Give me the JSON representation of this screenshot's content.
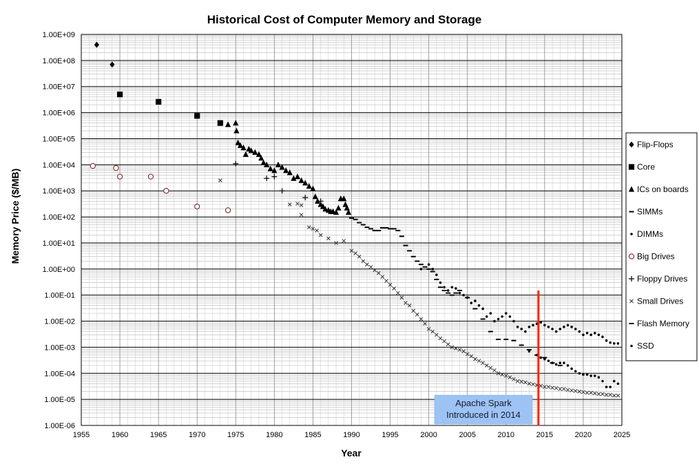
{
  "chart_data": {
    "type": "scatter",
    "title": "Historical Cost of Computer Memory and Storage",
    "xlabel": "Year",
    "ylabel": "Memory Price ($/MB)",
    "xlim": [
      1955,
      2025
    ],
    "ylim": [
      1e-06,
      1000000000.0
    ],
    "yscale": "log",
    "x_ticks": [
      "1955",
      "1960",
      "1965",
      "1970",
      "1975",
      "1980",
      "1985",
      "1990",
      "1995",
      "2000",
      "2005",
      "2010",
      "2015",
      "2020",
      "2025"
    ],
    "y_ticks": [
      "1.00E-06",
      "1.00E-05",
      "1.00E-04",
      "1.00E-03",
      "1.00E-02",
      "1.00E-01",
      "1.00E+00",
      "1.00E+01",
      "1.00E+02",
      "1.00E+03",
      "1.00E+04",
      "1.00E+05",
      "1.00E+06",
      "1.00E+07",
      "1.00E+08",
      "1.00E+09"
    ],
    "grid": true,
    "legend_position": "right",
    "series": [
      {
        "name": "Flip-Flops",
        "marker": "diamond",
        "x": [
          1957,
          1959
        ],
        "y": [
          400000000,
          70000000
        ]
      },
      {
        "name": "Core",
        "marker": "square",
        "x": [
          1960,
          1965,
          1970,
          1973
        ],
        "y": [
          5000000,
          2600000,
          750000,
          400000
        ]
      },
      {
        "name": "ICs on boards",
        "marker": "triangle",
        "x": [
          1974,
          1975,
          1975.1,
          1975.3,
          1975.6,
          1976,
          1976.3,
          1976.7,
          1977,
          1977.5,
          1978,
          1978.3,
          1978.6,
          1979,
          1979.5,
          1980,
          1980.5,
          1981,
          1981.5,
          1982,
          1982.5,
          1983,
          1983.5,
          1984,
          1984.5,
          1985,
          1985.3,
          1985.6,
          1986,
          1986.3,
          1986.6,
          1987,
          1987.3,
          1987.6,
          1988,
          1988.3,
          1988.6,
          1989,
          1989.2,
          1989.4,
          1989.6
        ],
        "y": [
          350000,
          400000,
          200000,
          70000,
          55000,
          45000,
          25000,
          40000,
          35000,
          30000,
          25000,
          18000,
          12000,
          10000,
          7000,
          6000,
          10000,
          8000,
          6000,
          5000,
          3000,
          3500,
          2500,
          2000,
          1500,
          1200,
          600,
          400,
          300,
          250,
          200,
          180,
          160,
          160,
          150,
          220,
          500,
          500,
          300,
          220,
          150
        ]
      },
      {
        "name": "SIMMs",
        "marker": "dash",
        "x": [
          1990,
          1990.5,
          1991,
          1991.5,
          1992,
          1992.5,
          1993,
          1993.5,
          1994,
          1994.5,
          1995,
          1995.5,
          1996,
          1996.5,
          1997,
          1997.5,
          1998,
          1998.5,
          1999,
          1999.5,
          2000,
          2000.5,
          2001,
          2001.5,
          2002,
          2002.5,
          2003,
          2003.5,
          2004
        ],
        "y": [
          90,
          80,
          60,
          50,
          40,
          35,
          30,
          30,
          38,
          38,
          35,
          35,
          30,
          18,
          8,
          5,
          3,
          2,
          1.5,
          1.2,
          1.0,
          0.8,
          0.4,
          0.2,
          0.15,
          0.12,
          0.1,
          0.12,
          0.15
        ]
      },
      {
        "name": "DIMMs",
        "marker": "dot",
        "x": [
          1999,
          2000,
          2000.5,
          2001,
          2001.5,
          2002,
          2002.5,
          2003,
          2003.5,
          2004,
          2004.5,
          2005,
          2005.5,
          2006,
          2006.5,
          2007,
          2007.5,
          2008,
          2008.5,
          2009,
          2009.5,
          2010,
          2010.5,
          2011,
          2011.5,
          2012,
          2012.5,
          2013,
          2013.5,
          2014,
          2014.5,
          2015,
          2015.5,
          2016,
          2016.5,
          2017,
          2017.5,
          2018,
          2018.5,
          2019,
          2019.5,
          2020,
          2020.5,
          2021,
          2021.5,
          2022,
          2022.5,
          2023,
          2023.5,
          2024,
          2024.5
        ],
        "y": [
          1.0,
          1.5,
          1.0,
          0.6,
          0.3,
          0.2,
          0.15,
          0.2,
          0.18,
          0.12,
          0.1,
          0.08,
          0.05,
          0.06,
          0.04,
          0.03,
          0.015,
          0.02,
          0.01,
          0.012,
          0.015,
          0.02,
          0.015,
          0.01,
          0.006,
          0.005,
          0.004,
          0.006,
          0.007,
          0.008,
          0.009,
          0.007,
          0.006,
          0.005,
          0.004,
          0.005,
          0.006,
          0.007,
          0.006,
          0.005,
          0.004,
          0.003,
          0.0035,
          0.003,
          0.0035,
          0.003,
          0.0025,
          0.0018,
          0.0015,
          0.0014,
          0.0014
        ]
      },
      {
        "name": "Big Drives",
        "marker": "circle-open",
        "x": [
          1956.5,
          1959.5,
          1960,
          1964,
          1966,
          1970,
          1974
        ],
        "y": [
          9000,
          7500,
          3500,
          3500,
          1000,
          250,
          180
        ]
      },
      {
        "name": "Floppy Drives",
        "marker": "plus",
        "x": [
          1975,
          1979,
          1980,
          1981,
          1984,
          1986
        ],
        "y": [
          11000,
          3000,
          3500,
          1000,
          550,
          400
        ]
      },
      {
        "name": "Small Drives",
        "marker": "x",
        "x": [
          1973,
          1982,
          1983,
          1983.5,
          1983.5,
          1984.5,
          1985,
          1985.5,
          1986,
          1987,
          1988,
          1989,
          1990,
          1990.5,
          1991,
          1991.5,
          1992,
          1992.5,
          1993,
          1993.5,
          1994,
          1994.5,
          1995,
          1995.5,
          1996,
          1996.5,
          1997,
          1997.5,
          1998,
          1998.5,
          1999,
          1999.5,
          2000,
          2000.5,
          2001,
          2001.5,
          2002,
          2002.5,
          2003,
          2003.5,
          2004,
          2004.5,
          2005,
          2005.5,
          2006,
          2006.5,
          2007,
          2007.5,
          2008,
          2008.5,
          2009,
          2009.5,
          2010,
          2010.5,
          2011,
          2011.5,
          2012,
          2012.5,
          2013,
          2013.5,
          2014,
          2014.5,
          2015,
          2015.5,
          2016,
          2016.5,
          2017,
          2017.5,
          2018,
          2018.5,
          2019,
          2019.5,
          2020,
          2020.5,
          2021,
          2021.5,
          2022,
          2022.5,
          2023,
          2023.5,
          2024,
          2024.5
        ],
        "y": [
          2500,
          300,
          320,
          280,
          120,
          40,
          35,
          30,
          20,
          15,
          10,
          12,
          5,
          4,
          3,
          2,
          1.5,
          1.2,
          0.9,
          0.7,
          0.5,
          0.35,
          0.25,
          0.18,
          0.12,
          0.08,
          0.05,
          0.04,
          0.025,
          0.018,
          0.012,
          0.008,
          0.005,
          0.004,
          0.003,
          0.0022,
          0.0017,
          0.0013,
          0.001,
          0.0009,
          0.0008,
          0.0007,
          0.00055,
          0.00045,
          0.00035,
          0.0003,
          0.00025,
          0.0002,
          0.00016,
          0.00013,
          0.0001,
          9e-05,
          8e-05,
          7e-05,
          6e-05,
          5e-05,
          4.8e-05,
          4.5e-05,
          4e-05,
          3.8e-05,
          3.5e-05,
          3.3e-05,
          3e-05,
          3e-05,
          2.8e-05,
          2.7e-05,
          2.5e-05,
          2.5e-05,
          2.3e-05,
          2.2e-05,
          2.1e-05,
          2e-05,
          1.9e-05,
          1.8e-05,
          1.8e-05,
          1.7e-05,
          1.6e-05,
          1.6e-05,
          1.5e-05,
          1.5e-05,
          1.4e-05,
          1.4e-05
        ]
      },
      {
        "name": "Flash Memory",
        "marker": "dash",
        "x": [
          2005,
          2006,
          2007,
          2008,
          2009,
          2010,
          2011,
          2012,
          2013,
          2014,
          2015,
          2016,
          2017
        ],
        "y": [
          0.08,
          0.03,
          0.012,
          0.004,
          0.002,
          0.002,
          0.0018,
          0.0012,
          0.0008,
          0.0005,
          0.0004,
          0.00025,
          0.0002
        ]
      },
      {
        "name": "SSD",
        "marker": "dot",
        "x": [
          2013,
          2014,
          2014.5,
          2015,
          2015.5,
          2016,
          2016.5,
          2017,
          2017.5,
          2018,
          2018.5,
          2019,
          2019.5,
          2020,
          2020.5,
          2021,
          2021.5,
          2022,
          2022.5,
          2023,
          2023.5,
          2024,
          2024.5
        ],
        "y": [
          0.0007,
          0.0005,
          0.0004,
          0.00035,
          0.0003,
          0.00025,
          0.00022,
          0.00025,
          0.00025,
          0.0002,
          0.00015,
          0.00012,
          0.0001,
          9e-05,
          9e-05,
          8e-05,
          8e-05,
          7e-05,
          5e-05,
          3e-05,
          3e-05,
          5e-05,
          4e-05
        ]
      }
    ],
    "annotations": [
      {
        "text": "Apache Spark\nIntroduced in 2014",
        "x": 2014.2,
        "line_color": "#ff2200",
        "box_color": "#9dc3f5"
      }
    ]
  }
}
